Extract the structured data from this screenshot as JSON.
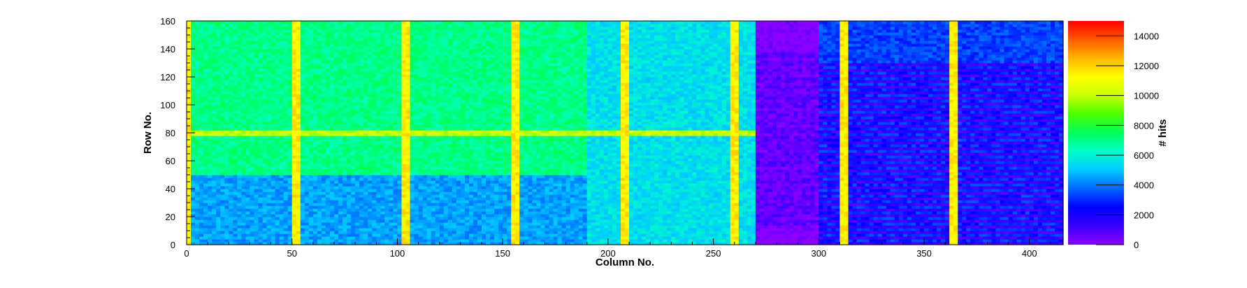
{
  "chart_data": {
    "type": "heatmap",
    "title": "",
    "xlabel": "Column No.",
    "ylabel": "Row No.",
    "zlabel": "# hits",
    "xlim": [
      0,
      416
    ],
    "ylim": [
      0,
      160
    ],
    "zlim": [
      0,
      15000
    ],
    "x_ticks": [
      0,
      50,
      100,
      150,
      200,
      250,
      300,
      350,
      400
    ],
    "y_ticks": [
      0,
      20,
      40,
      60,
      80,
      100,
      120,
      140,
      160
    ],
    "z_ticks": [
      0,
      2000,
      4000,
      6000,
      8000,
      10000,
      12000,
      14000
    ],
    "colormap": [
      "#8b00ff",
      "#3a00ff",
      "#0000ff",
      "#0066ff",
      "#00c8ff",
      "#00ffc8",
      "#00ff5a",
      "#4cff00",
      "#c8ff00",
      "#ffff00",
      "#ffb400",
      "#ff5a00",
      "#ff0000"
    ],
    "grid": false,
    "description": "Pixel hit map: 416 columns x 160 rows, ~6000-9000 hits in left region (cols 0-270), ~2000-4000 in right region (cols 270-416), hot columns near 52, 104, 156, 208, 260, 312, 364 and hot row 80.",
    "hot_columns": [
      1,
      52,
      104,
      156,
      208,
      260,
      312,
      364
    ],
    "hot_row": 80,
    "region_levels": [
      {
        "cols": [
          0,
          270
        ],
        "rows": [
          0,
          160
        ],
        "hits": 7000
      },
      {
        "cols": [
          0,
          270
        ],
        "rows": [
          0,
          50
        ],
        "hits": 4500
      },
      {
        "cols": [
          190,
          270
        ],
        "rows": [
          0,
          160
        ],
        "hits": 5500
      },
      {
        "cols": [
          270,
          300
        ],
        "rows": [
          15,
          138
        ],
        "hits": 400
      },
      {
        "cols": [
          300,
          416
        ],
        "rows": [
          0,
          130
        ],
        "hits": 2200
      },
      {
        "cols": [
          300,
          416
        ],
        "rows": [
          130,
          160
        ],
        "hits": 3300
      }
    ]
  }
}
